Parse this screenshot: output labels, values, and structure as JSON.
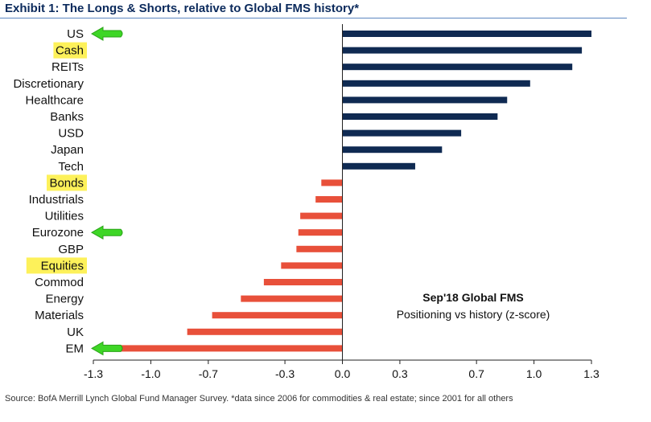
{
  "title": "Exhibit 1: The Longs & Shorts, relative to Global FMS history*",
  "source": "Source:  BofA Merrill Lynch Global Fund Manager Survey. *data since 2006 for commodities & real estate; since 2001  for all others",
  "colors": {
    "positive": "#0f2a52",
    "negative": "#e8503a",
    "highlight": "#fdf15a",
    "arrow": "#3ed626",
    "title": "#0b2a5c"
  },
  "chart_data": {
    "type": "bar",
    "orientation": "horizontal",
    "categories": [
      "US",
      "Cash",
      "REITs",
      "Discretionary",
      "Healthcare",
      "Banks",
      "USD",
      "Japan",
      "Tech",
      "Bonds",
      "Industrials",
      "Utilities",
      "Eurozone",
      "GBP",
      "Equities",
      "Commod",
      "Energy",
      "Materials",
      "UK",
      "EM"
    ],
    "values": [
      1.3,
      1.25,
      1.2,
      0.98,
      0.86,
      0.81,
      0.62,
      0.52,
      0.38,
      -0.11,
      -0.14,
      -0.22,
      -0.23,
      -0.24,
      -0.32,
      -0.41,
      -0.53,
      -0.68,
      -0.81,
      -1.25
    ],
    "highlighted": [
      "Cash",
      "Bonds",
      "Equities"
    ],
    "arrows": [
      "US",
      "Eurozone",
      "EM"
    ],
    "xlim": [
      -1.3,
      1.3
    ],
    "xticks": [
      "-1.3",
      "-1.0",
      "-0.7",
      "-0.3",
      "0.0",
      "0.3",
      "0.7",
      "1.0",
      "1.3"
    ],
    "xlabel": "",
    "ylabel": "",
    "grid": false,
    "annotation": {
      "title": "Sep'18 Global FMS",
      "subtitle": "Positioning vs history (z-score)"
    }
  }
}
